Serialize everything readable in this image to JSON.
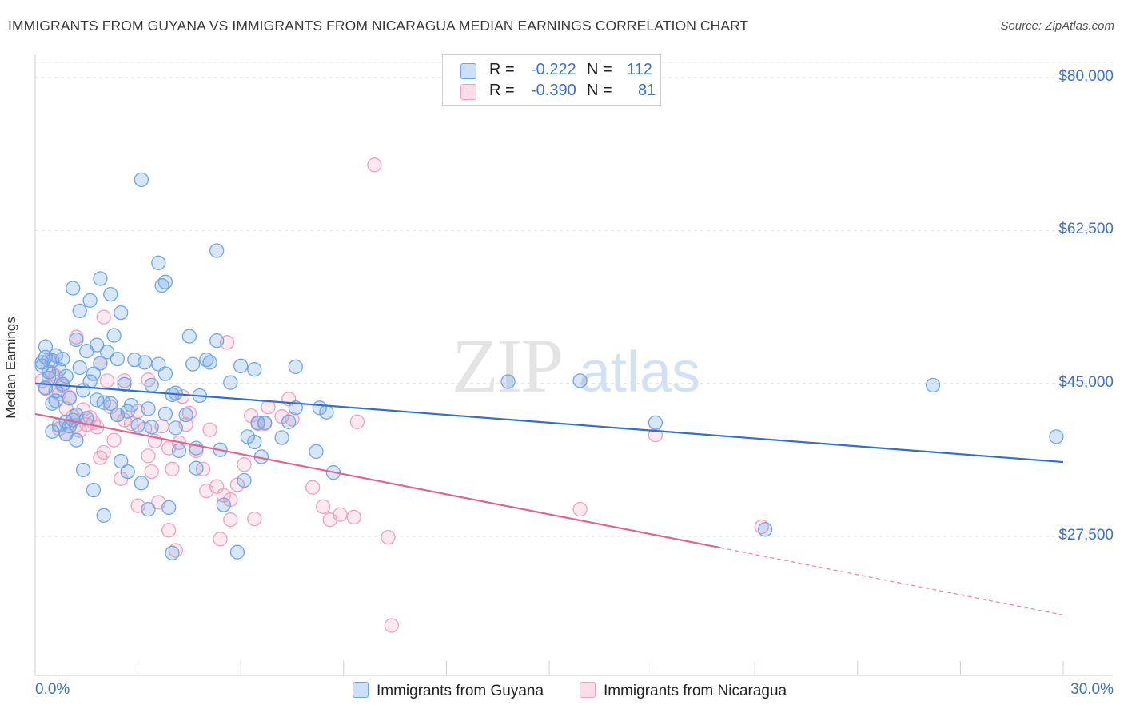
{
  "header": {
    "title": "IMMIGRANTS FROM GUYANA VS IMMIGRANTS FROM NICARAGUA MEDIAN EARNINGS CORRELATION CHART",
    "source": "Source: ZipAtlas.com"
  },
  "watermark": {
    "zip": "ZIP",
    "atlas": "atlas"
  },
  "legend": {
    "rows": [
      {
        "r_label": "R =",
        "r_value": "-0.222",
        "n_label": "N =",
        "n_value": "112",
        "color": "#6ea6e8"
      },
      {
        "r_label": "R =",
        "r_value": "-0.390",
        "n_label": "N =",
        "n_value": "81",
        "color": "#f2a0b9"
      }
    ]
  },
  "chart_data": {
    "type": "scatter",
    "ylabel": "Median Earnings",
    "xlim": [
      0,
      30
    ],
    "ylim": [
      12000,
      88000
    ],
    "y_ticks": [
      {
        "value": 80000,
        "label": "$80,000"
      },
      {
        "value": 62500,
        "label": "$62,500"
      },
      {
        "value": 45000,
        "label": "$45,000"
      },
      {
        "value": 27500,
        "label": "$27,500"
      }
    ],
    "x_tick_labels": {
      "min": "0.0%",
      "max": "30.0%"
    },
    "grid": "horizontal dashed",
    "legend_position": "top-center",
    "series": [
      {
        "name": "Immigrants from Guyana",
        "color": "#6ea6e8",
        "fill": "rgba(110,166,232,0.28)",
        "trend": {
          "x0": 0,
          "y0": 45000,
          "x1": 30,
          "y1": 36000
        },
        "points": [
          [
            0.2,
            47.4
          ],
          [
            0.4,
            46.3
          ],
          [
            0.5,
            47.6
          ],
          [
            0.3,
            48.0
          ],
          [
            0.6,
            48.2
          ],
          [
            0.2,
            47.0
          ],
          [
            0.7,
            46.6
          ],
          [
            0.4,
            45.6
          ],
          [
            0.3,
            44.5
          ],
          [
            0.9,
            45.8
          ],
          [
            0.8,
            44.9
          ],
          [
            1.0,
            43.3
          ],
          [
            0.5,
            42.7
          ],
          [
            0.6,
            43.0
          ],
          [
            1.2,
            41.4
          ],
          [
            0.7,
            40.2
          ],
          [
            1.1,
            40.8
          ],
          [
            0.9,
            40.6
          ],
          [
            1.4,
            44.2
          ],
          [
            1.5,
            41.0
          ],
          [
            1.6,
            45.2
          ],
          [
            1.7,
            46.1
          ],
          [
            1.3,
            46.8
          ],
          [
            1.9,
            47.3
          ],
          [
            2.1,
            48.6
          ],
          [
            2.4,
            47.8
          ],
          [
            1.8,
            49.4
          ],
          [
            1.2,
            50.0
          ],
          [
            1.1,
            55.9
          ],
          [
            1.3,
            53.3
          ],
          [
            1.6,
            54.5
          ],
          [
            1.9,
            57.0
          ],
          [
            2.2,
            55.2
          ],
          [
            2.5,
            53.1
          ],
          [
            2.3,
            50.5
          ],
          [
            3.1,
            68.3
          ],
          [
            3.6,
            58.8
          ],
          [
            3.7,
            56.2
          ],
          [
            3.8,
            56.6
          ],
          [
            5.3,
            60.2
          ],
          [
            2.6,
            44.9
          ],
          [
            2.9,
            47.7
          ],
          [
            3.2,
            47.4
          ],
          [
            3.4,
            44.8
          ],
          [
            3.6,
            47.2
          ],
          [
            3.8,
            46.1
          ],
          [
            4.1,
            43.9
          ],
          [
            4.6,
            47.2
          ],
          [
            5.0,
            47.7
          ],
          [
            4.8,
            43.6
          ],
          [
            5.1,
            47.4
          ],
          [
            5.3,
            49.9
          ],
          [
            4.5,
            50.4
          ],
          [
            4.0,
            43.7
          ],
          [
            5.7,
            45.1
          ],
          [
            6.0,
            47.0
          ],
          [
            6.4,
            46.6
          ],
          [
            7.6,
            46.9
          ],
          [
            7.6,
            42.2
          ],
          [
            8.3,
            42.2
          ],
          [
            8.5,
            41.7
          ],
          [
            6.7,
            40.5
          ],
          [
            7.4,
            40.6
          ],
          [
            7.2,
            38.8
          ],
          [
            6.4,
            38.3
          ],
          [
            8.2,
            37.2
          ],
          [
            8.7,
            34.8
          ],
          [
            2.8,
            42.5
          ],
          [
            3.0,
            40.2
          ],
          [
            3.3,
            42.1
          ],
          [
            3.8,
            41.5
          ],
          [
            4.1,
            39.9
          ],
          [
            4.4,
            41.4
          ],
          [
            2.2,
            42.7
          ],
          [
            2.4,
            41.4
          ],
          [
            1.8,
            43.1
          ],
          [
            2.0,
            42.8
          ],
          [
            0.9,
            39.2
          ],
          [
            1.2,
            38.5
          ],
          [
            0.5,
            39.5
          ],
          [
            1.0,
            40.1
          ],
          [
            1.4,
            35.1
          ],
          [
            1.7,
            32.8
          ],
          [
            2.0,
            29.9
          ],
          [
            2.5,
            36.1
          ],
          [
            2.7,
            34.9
          ],
          [
            3.1,
            33.6
          ],
          [
            3.3,
            30.6
          ],
          [
            3.9,
            30.8
          ],
          [
            4.7,
            35.3
          ],
          [
            5.5,
            31.1
          ],
          [
            5.4,
            37.4
          ],
          [
            4.2,
            37.3
          ],
          [
            4.7,
            37.6
          ],
          [
            4.0,
            25.6
          ],
          [
            5.9,
            25.7
          ],
          [
            6.1,
            33.9
          ],
          [
            6.6,
            36.6
          ],
          [
            6.2,
            38.9
          ],
          [
            6.5,
            40.5
          ],
          [
            13.8,
            45.2
          ],
          [
            15.9,
            45.3
          ],
          [
            18.1,
            40.5
          ],
          [
            21.3,
            28.3
          ],
          [
            26.2,
            44.8
          ],
          [
            29.8,
            38.9
          ],
          [
            0.3,
            49.2
          ],
          [
            0.8,
            47.8
          ],
          [
            0.6,
            44.1
          ],
          [
            1.5,
            48.7
          ],
          [
            2.7,
            41.8
          ],
          [
            3.4,
            40.0
          ]
        ]
      },
      {
        "name": "Immigrants from Nicaragua",
        "color": "#f2a0b9",
        "fill": "rgba(242,160,185,0.22)",
        "trend": {
          "x0": 0,
          "y0": 41500,
          "x1": 20,
          "y1": 26200
        },
        "trend_dashed": {
          "x0": 20,
          "y0": 26200,
          "x1": 30,
          "y1": 18500
        },
        "points": [
          [
            0.2,
            45.3
          ],
          [
            0.3,
            44.4
          ],
          [
            0.5,
            46.1
          ],
          [
            0.4,
            47.6
          ],
          [
            0.6,
            45.8
          ],
          [
            0.7,
            43.8
          ],
          [
            0.8,
            44.7
          ],
          [
            0.9,
            42.1
          ],
          [
            1.0,
            43.4
          ],
          [
            1.1,
            41.2
          ],
          [
            1.2,
            40.2
          ],
          [
            1.3,
            39.6
          ],
          [
            1.4,
            42.0
          ],
          [
            1.6,
            41.1
          ],
          [
            1.7,
            40.5
          ],
          [
            1.5,
            40.3
          ],
          [
            0.9,
            39.2
          ],
          [
            0.7,
            39.8
          ],
          [
            1.9,
            47.3
          ],
          [
            2.1,
            45.3
          ],
          [
            1.8,
            40.0
          ],
          [
            2.2,
            42.3
          ],
          [
            2.4,
            41.4
          ],
          [
            2.6,
            40.8
          ],
          [
            2.3,
            38.5
          ],
          [
            2.0,
            37.1
          ],
          [
            1.9,
            36.5
          ],
          [
            2.5,
            34.1
          ],
          [
            2.8,
            40.4
          ],
          [
            3.0,
            41.8
          ],
          [
            3.2,
            39.8
          ],
          [
            3.3,
            36.7
          ],
          [
            3.5,
            38.4
          ],
          [
            3.7,
            40.1
          ],
          [
            3.9,
            37.6
          ],
          [
            4.0,
            35.2
          ],
          [
            4.2,
            38.2
          ],
          [
            4.4,
            40.3
          ],
          [
            4.5,
            41.6
          ],
          [
            4.7,
            37.3
          ],
          [
            4.9,
            35.2
          ],
          [
            5.1,
            39.7
          ],
          [
            5.3,
            33.2
          ],
          [
            5.5,
            32.2
          ],
          [
            5.7,
            31.7
          ],
          [
            5.9,
            33.4
          ],
          [
            6.1,
            35.7
          ],
          [
            6.3,
            41.3
          ],
          [
            6.5,
            40.4
          ],
          [
            6.7,
            40.4
          ],
          [
            6.8,
            42.3
          ],
          [
            7.2,
            41.2
          ],
          [
            7.4,
            43.2
          ],
          [
            7.5,
            40.9
          ],
          [
            8.1,
            33.1
          ],
          [
            8.4,
            30.9
          ],
          [
            8.6,
            29.4
          ],
          [
            8.9,
            30.0
          ],
          [
            9.3,
            29.7
          ],
          [
            9.4,
            40.6
          ],
          [
            2.0,
            52.6
          ],
          [
            5.6,
            49.7
          ],
          [
            4.3,
            43.5
          ],
          [
            3.3,
            45.4
          ],
          [
            3.0,
            31.0
          ],
          [
            3.4,
            34.9
          ],
          [
            3.6,
            31.4
          ],
          [
            3.9,
            28.2
          ],
          [
            4.1,
            25.9
          ],
          [
            5.0,
            32.7
          ],
          [
            5.4,
            27.2
          ],
          [
            5.7,
            29.4
          ],
          [
            6.4,
            29.5
          ],
          [
            9.9,
            70.0
          ],
          [
            10.3,
            27.4
          ],
          [
            10.4,
            17.3
          ],
          [
            15.9,
            30.6
          ],
          [
            18.1,
            39.1
          ],
          [
            21.2,
            28.6
          ],
          [
            2.6,
            45.3
          ],
          [
            1.2,
            50.3
          ]
        ]
      }
    ]
  }
}
